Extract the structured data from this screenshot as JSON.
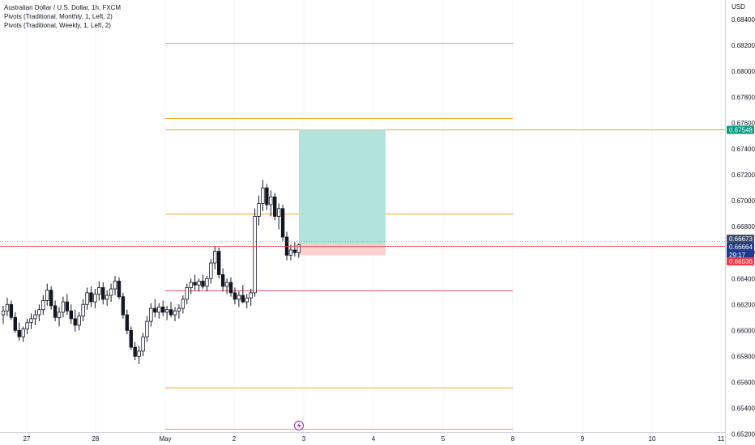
{
  "legend": {
    "title": "Australian Dollar / U.S. Dollar, 1h, FXCM",
    "indicator_monthly": "Pivots (Traditional, Monthly, 1, Left, 2)",
    "indicator_weekly": "Pivots (Traditional, Weekly, 1, Left, 2)"
  },
  "colors": {
    "pivot": "#f5a623",
    "pivot_pp": "#e0506e",
    "profit": "#b2e4dc",
    "loss": "#fccfd0",
    "tp_tag": "#089981",
    "sl_tag": "#f23645",
    "price_tag": "#1e3a8a",
    "candle": "#131722"
  },
  "chart_data": {
    "type": "candlestick",
    "symbol": "AUDUSD",
    "currency_label": "USD",
    "ylim": [
      0.6519,
      0.6855
    ],
    "y_ticks": [
      "0.68400",
      "0.68200",
      "0.68000",
      "0.67800",
      "0.67600",
      "0.67400",
      "0.67200",
      "0.67000",
      "0.66800",
      "0.66600",
      "0.66400",
      "0.66200",
      "0.66000",
      "0.65800",
      "0.65600",
      "0.65400",
      "0.65200"
    ],
    "x_ticks": [
      "27",
      "28",
      "May",
      "2",
      "3",
      "4",
      "5",
      "8",
      "9",
      "10",
      "11"
    ],
    "pivot_levels": [
      {
        "value": 0.6822,
        "kind": "resistance"
      },
      {
        "value": 0.6764,
        "kind": "resistance"
      },
      {
        "value": 0.669,
        "kind": "resistance"
      },
      {
        "value": 0.6631,
        "kind": "pivot"
      },
      {
        "value": 0.6556,
        "kind": "support"
      },
      {
        "value": 0.6524,
        "kind": "support"
      }
    ],
    "extended_level": 0.67548,
    "position": {
      "type": "long",
      "entry": 0.66664,
      "take_profit": 0.67548,
      "stop_loss": 0.66536
    },
    "price_tags": {
      "take_profit": "0.67548",
      "last_high": "0.66673",
      "current": "0.66664",
      "countdown": "29:17",
      "stop_loss": "0.66536"
    },
    "candles": [
      [
        0.6612,
        0.6619,
        0.6605,
        0.6615
      ],
      [
        0.6615,
        0.6625,
        0.6611,
        0.662
      ],
      [
        0.662,
        0.6623,
        0.6608,
        0.661
      ],
      [
        0.661,
        0.6614,
        0.6598,
        0.66
      ],
      [
        0.66,
        0.6606,
        0.6592,
        0.6595
      ],
      [
        0.6595,
        0.6603,
        0.6591,
        0.6601
      ],
      [
        0.6601,
        0.6609,
        0.6597,
        0.6606
      ],
      [
        0.6606,
        0.6613,
        0.6601,
        0.6609
      ],
      [
        0.6609,
        0.6616,
        0.6604,
        0.6612
      ],
      [
        0.6612,
        0.662,
        0.6607,
        0.6616
      ],
      [
        0.6616,
        0.6627,
        0.6612,
        0.6623
      ],
      [
        0.6623,
        0.6636,
        0.6619,
        0.6631
      ],
      [
        0.6631,
        0.6634,
        0.6616,
        0.6619
      ],
      [
        0.6619,
        0.6623,
        0.6607,
        0.661
      ],
      [
        0.661,
        0.6618,
        0.6603,
        0.6614
      ],
      [
        0.6614,
        0.6626,
        0.661,
        0.6622
      ],
      [
        0.6622,
        0.6628,
        0.6612,
        0.6615
      ],
      [
        0.6615,
        0.662,
        0.6605,
        0.6609
      ],
      [
        0.6609,
        0.6616,
        0.6599,
        0.6604
      ],
      [
        0.6604,
        0.6614,
        0.66,
        0.6611
      ],
      [
        0.6611,
        0.6624,
        0.6607,
        0.662
      ],
      [
        0.662,
        0.6633,
        0.6616,
        0.6629
      ],
      [
        0.6629,
        0.6634,
        0.6618,
        0.6622
      ],
      [
        0.6622,
        0.6632,
        0.6617,
        0.6628
      ],
      [
        0.6628,
        0.6638,
        0.6623,
        0.6633
      ],
      [
        0.6633,
        0.6637,
        0.662,
        0.6624
      ],
      [
        0.6624,
        0.6631,
        0.6619,
        0.6627
      ],
      [
        0.6627,
        0.6636,
        0.6622,
        0.6632
      ],
      [
        0.6632,
        0.6642,
        0.6627,
        0.6638
      ],
      [
        0.6638,
        0.6641,
        0.6624,
        0.6626
      ],
      [
        0.6626,
        0.6629,
        0.6609,
        0.6612
      ],
      [
        0.6612,
        0.6616,
        0.6597,
        0.66
      ],
      [
        0.66,
        0.6603,
        0.6585,
        0.6587
      ],
      [
        0.6587,
        0.6591,
        0.6577,
        0.658
      ],
      [
        0.658,
        0.6588,
        0.6574,
        0.6584
      ],
      [
        0.6584,
        0.6598,
        0.658,
        0.6595
      ],
      [
        0.6595,
        0.6611,
        0.6591,
        0.6607
      ],
      [
        0.6607,
        0.6621,
        0.6603,
        0.6617
      ],
      [
        0.6617,
        0.6624,
        0.661,
        0.6614
      ],
      [
        0.6614,
        0.6621,
        0.6609,
        0.6618
      ],
      [
        0.6618,
        0.6623,
        0.6611,
        0.6614
      ],
      [
        0.6614,
        0.6619,
        0.6608,
        0.6616
      ],
      [
        0.6616,
        0.6622,
        0.661,
        0.6612
      ],
      [
        0.6612,
        0.6618,
        0.6607,
        0.6615
      ],
      [
        0.6615,
        0.662,
        0.6609,
        0.6617
      ],
      [
        0.6617,
        0.6627,
        0.6613,
        0.6624
      ],
      [
        0.6624,
        0.6636,
        0.662,
        0.6633
      ],
      [
        0.6633,
        0.664,
        0.6628,
        0.6637
      ],
      [
        0.6637,
        0.6643,
        0.6631,
        0.6635
      ],
      [
        0.6635,
        0.664,
        0.663,
        0.6638
      ],
      [
        0.6638,
        0.6643,
        0.6632,
        0.6634
      ],
      [
        0.6634,
        0.6642,
        0.663,
        0.664
      ],
      [
        0.664,
        0.6655,
        0.6636,
        0.6652
      ],
      [
        0.6652,
        0.6665,
        0.6647,
        0.6661
      ],
      [
        0.6661,
        0.6664,
        0.664,
        0.6643
      ],
      [
        0.6643,
        0.6648,
        0.663,
        0.6634
      ],
      [
        0.6634,
        0.664,
        0.6628,
        0.6637
      ],
      [
        0.6637,
        0.6641,
        0.6626,
        0.6629
      ],
      [
        0.6629,
        0.6633,
        0.662,
        0.6624
      ],
      [
        0.6624,
        0.663,
        0.6618,
        0.6627
      ],
      [
        0.6627,
        0.6635,
        0.6621,
        0.6622
      ],
      [
        0.6622,
        0.6628,
        0.6617,
        0.6625
      ],
      [
        0.6625,
        0.6632,
        0.6619,
        0.6629
      ],
      [
        0.6629,
        0.6694,
        0.6626,
        0.6688
      ],
      [
        0.6688,
        0.6704,
        0.6681,
        0.6698
      ],
      [
        0.6698,
        0.6716,
        0.6692,
        0.671
      ],
      [
        0.671,
        0.6713,
        0.6693,
        0.6697
      ],
      [
        0.6697,
        0.6708,
        0.6688,
        0.6703
      ],
      [
        0.6703,
        0.6706,
        0.6685,
        0.6688
      ],
      [
        0.6688,
        0.6698,
        0.6678,
        0.6694
      ],
      [
        0.6694,
        0.6697,
        0.6669,
        0.6672
      ],
      [
        0.6672,
        0.6676,
        0.6654,
        0.6658
      ],
      [
        0.6658,
        0.6666,
        0.6654,
        0.6662
      ],
      [
        0.6662,
        0.6668,
        0.6657,
        0.666
      ],
      [
        0.666,
        0.6667,
        0.6656,
        0.6666
      ]
    ]
  }
}
